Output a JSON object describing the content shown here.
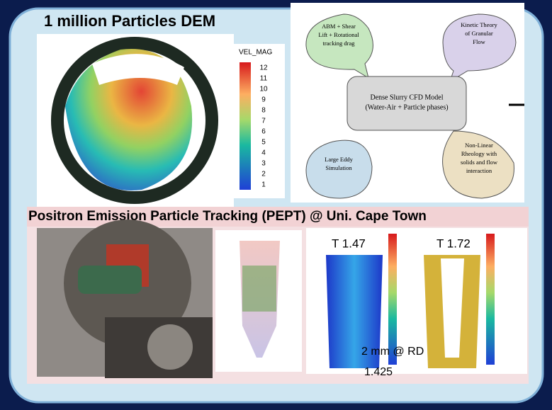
{
  "slide": {
    "title": "1 million Particles DEM",
    "legend": {
      "title": "VEL_MAG",
      "levels": [
        12,
        11,
        10,
        9,
        8,
        7,
        6,
        5,
        4,
        3,
        2,
        1
      ]
    },
    "diagram": {
      "center": [
        "Dense Slurry CFD Model",
        "(Water-Air + Particle phases)"
      ],
      "bubbles": [
        [
          "ABM + Shear",
          "Lift + Rotational",
          "tracking drag"
        ],
        [
          "Kinetic Theory",
          "of Granular",
          "Flow"
        ],
        [
          "Large Eddy",
          "Simulation"
        ],
        [
          "Non-Linear",
          "Rheology with",
          "solids and flow",
          "interaction"
        ]
      ]
    },
    "banner": "Positron Emission Particle Tracking (PEPT) @ Uni. Cape Town",
    "plots": {
      "left_label": "T 1.47",
      "right_label": "T 1.72",
      "note": "2 mm @ RD",
      "note2": "1.425"
    }
  }
}
